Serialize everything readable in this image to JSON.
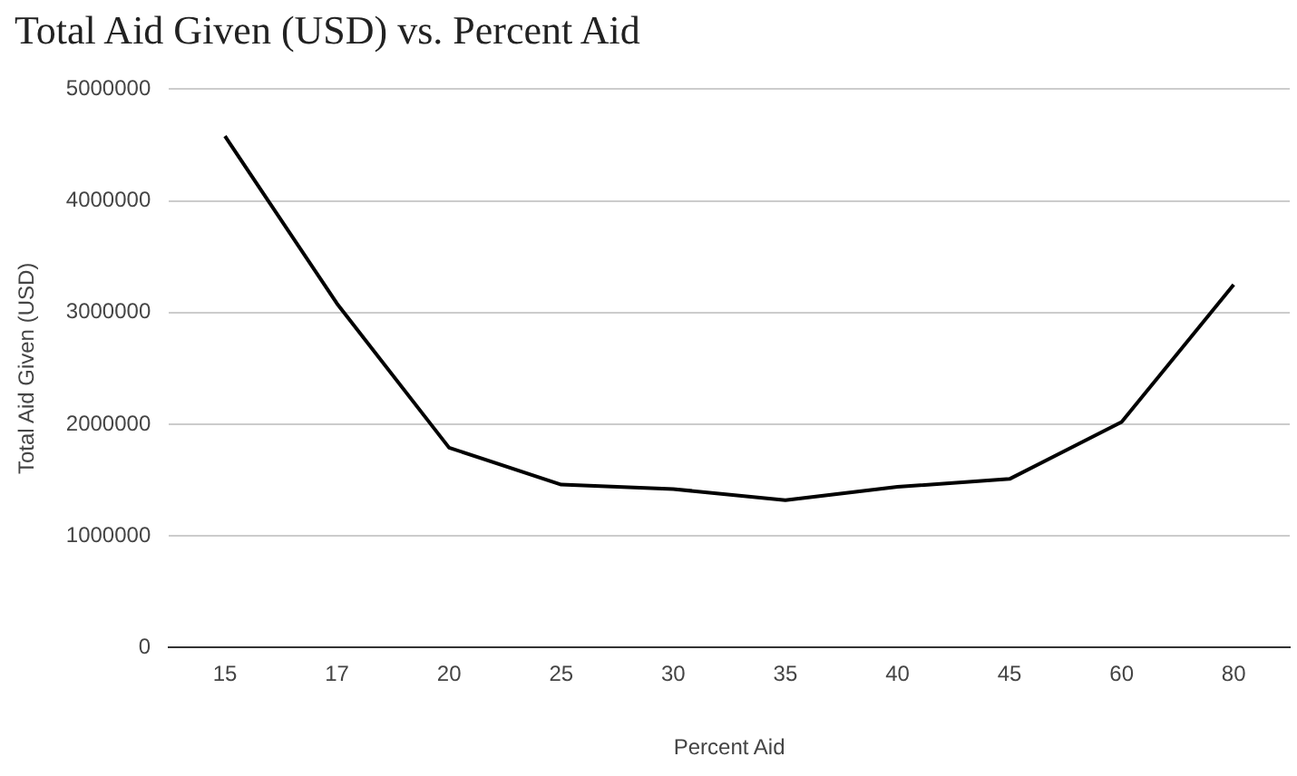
{
  "chart_data": {
    "type": "line",
    "title": "Total Aid Given (USD) vs. Percent Aid",
    "xlabel": "Percent Aid",
    "ylabel": "Total Aid Given (USD)",
    "categories": [
      "15",
      "17",
      "20",
      "25",
      "30",
      "35",
      "40",
      "45",
      "60",
      "80"
    ],
    "series": [
      {
        "color": "#000000",
        "values": [
          4580000,
          3080000,
          1790000,
          1460000,
          1420000,
          1320000,
          1440000,
          1510000,
          2020000,
          3250000
        ]
      }
    ],
    "ylim": [
      0,
      5000000
    ],
    "yticks": [
      0,
      1000000,
      2000000,
      3000000,
      4000000,
      5000000
    ],
    "grid": "y",
    "legend": false,
    "marker": "none",
    "line_style": "solid"
  }
}
